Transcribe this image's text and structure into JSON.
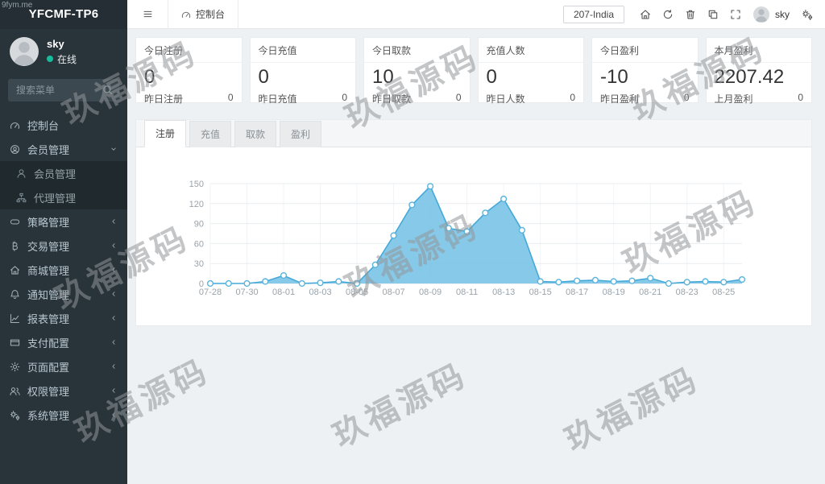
{
  "watermark": {
    "text": "玖福源码",
    "corner": "9fym.me"
  },
  "sidebar": {
    "logo": "YFCMF-TP6",
    "user": {
      "name": "sky",
      "status": "在线"
    },
    "search_placeholder": "搜索菜单",
    "items": [
      {
        "label": "控制台",
        "icon": "dashboard",
        "chevron": "",
        "sub": false
      },
      {
        "label": "会员管理",
        "icon": "user-circle",
        "chevron": "down",
        "sub": false
      },
      {
        "label": "会员管理",
        "icon": "user",
        "chevron": "",
        "sub": true
      },
      {
        "label": "代理管理",
        "icon": "sitemap",
        "chevron": "",
        "sub": true
      },
      {
        "label": "策略管理",
        "icon": "strategy",
        "chevron": "left",
        "sub": false
      },
      {
        "label": "交易管理",
        "icon": "transaction",
        "chevron": "left",
        "sub": false
      },
      {
        "label": "商城管理",
        "icon": "shop",
        "chevron": "left",
        "sub": false
      },
      {
        "label": "通知管理",
        "icon": "notice",
        "chevron": "left",
        "sub": false
      },
      {
        "label": "报表管理",
        "icon": "report",
        "chevron": "left",
        "sub": false
      },
      {
        "label": "支付配置",
        "icon": "payment",
        "chevron": "left",
        "sub": false
      },
      {
        "label": "页面配置",
        "icon": "page",
        "chevron": "left",
        "sub": false
      },
      {
        "label": "权限管理",
        "icon": "permission",
        "chevron": "left",
        "sub": false
      },
      {
        "label": "系统管理",
        "icon": "system",
        "chevron": "left",
        "sub": false
      }
    ]
  },
  "topbar": {
    "menu_tab": "控制台",
    "site": "207-India",
    "user": "sky",
    "icons": [
      "home",
      "refresh",
      "trash",
      "copy",
      "expand"
    ]
  },
  "cards": [
    {
      "title": "今日注册",
      "value": "0",
      "sub_label": "昨日注册",
      "sub_value": "0"
    },
    {
      "title": "今日充值",
      "value": "0",
      "sub_label": "昨日充值",
      "sub_value": "0"
    },
    {
      "title": "今日取款",
      "value": "10",
      "sub_label": "昨日取款",
      "sub_value": "0"
    },
    {
      "title": "充值人数",
      "value": "0",
      "sub_label": "昨日人数",
      "sub_value": "0"
    },
    {
      "title": "今日盈利",
      "value": "-10",
      "sub_label": "昨日盈利",
      "sub_value": "0"
    },
    {
      "title": "本月盈利",
      "value": "2207.42",
      "sub_label": "上月盈利",
      "sub_value": "0"
    }
  ],
  "tabs": [
    {
      "label": "注册",
      "active": true
    },
    {
      "label": "充值",
      "active": false
    },
    {
      "label": "取款",
      "active": false
    },
    {
      "label": "盈利",
      "active": false
    }
  ],
  "chart_data": {
    "type": "area",
    "title": "注册",
    "x": [
      "07-28",
      "07-29",
      "07-30",
      "07-31",
      "08-01",
      "08-02",
      "08-03",
      "08-04",
      "08-05",
      "08-06",
      "08-07",
      "08-08",
      "08-09",
      "08-10",
      "08-11",
      "08-12",
      "08-13",
      "08-14",
      "08-15",
      "08-16",
      "08-17",
      "08-18",
      "08-19",
      "08-20",
      "08-21",
      "08-22",
      "08-23",
      "08-24",
      "08-25",
      "08-26"
    ],
    "series": [
      {
        "name": "注册",
        "values": [
          0,
          0,
          0,
          3,
          12,
          0,
          1,
          3,
          0,
          28,
          72,
          118,
          146,
          83,
          78,
          106,
          127,
          80,
          3,
          2,
          4,
          5,
          3,
          4,
          8,
          0,
          2,
          3,
          2,
          6
        ]
      }
    ],
    "ylim": [
      0,
      150
    ],
    "yticks": [
      0,
      30,
      60,
      90,
      120,
      150
    ],
    "xtick_interval": 2,
    "grid": true,
    "legend_position": "none",
    "colors": {
      "area": "#7ac3e6",
      "line": "#45a9d8",
      "point_fill": "#ffffff",
      "point_stroke": "#5ab4dd"
    }
  }
}
